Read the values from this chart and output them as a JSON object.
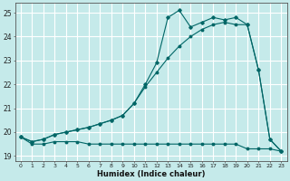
{
  "xlabel": "Humidex (Indice chaleur)",
  "bg_color": "#c5eaea",
  "line_color": "#006666",
  "grid_color": "#ffffff",
  "xlim": [
    -0.5,
    23.5
  ],
  "ylim": [
    18.8,
    25.4
  ],
  "yticks": [
    19,
    20,
    21,
    22,
    23,
    24,
    25
  ],
  "xticks": [
    0,
    1,
    2,
    3,
    4,
    5,
    6,
    7,
    8,
    9,
    10,
    11,
    12,
    13,
    14,
    15,
    16,
    17,
    18,
    19,
    20,
    21,
    22,
    23
  ],
  "line_flat_x": [
    0,
    1,
    2,
    3,
    4,
    5,
    6,
    7,
    8,
    9,
    10,
    11,
    12,
    13,
    14,
    15,
    16,
    17,
    18,
    19,
    20,
    21,
    22,
    23
  ],
  "line_flat_y": [
    19.8,
    19.5,
    19.5,
    19.6,
    19.6,
    19.6,
    19.5,
    19.5,
    19.5,
    19.5,
    19.5,
    19.5,
    19.5,
    19.5,
    19.5,
    19.5,
    19.5,
    19.5,
    19.5,
    19.5,
    19.3,
    19.3,
    19.3,
    19.2
  ],
  "line_diag_x": [
    0,
    1,
    2,
    3,
    4,
    5,
    6,
    7,
    8,
    9,
    10,
    11,
    12,
    13,
    14,
    15,
    16,
    17,
    18,
    19,
    20,
    21,
    22,
    23
  ],
  "line_diag_y": [
    19.8,
    19.6,
    19.7,
    19.9,
    20.0,
    20.1,
    20.2,
    20.35,
    20.5,
    20.7,
    21.2,
    21.9,
    22.5,
    23.1,
    23.6,
    24.0,
    24.3,
    24.5,
    24.6,
    24.5,
    24.5,
    22.6,
    19.7,
    19.2
  ],
  "line_zigzag_x": [
    0,
    1,
    2,
    3,
    4,
    5,
    6,
    7,
    8,
    9,
    10,
    11,
    12,
    13,
    14,
    15,
    16,
    17,
    18,
    19,
    20,
    21,
    22,
    23
  ],
  "line_zigzag_y": [
    19.8,
    19.6,
    19.7,
    19.9,
    20.0,
    20.1,
    20.2,
    20.35,
    20.5,
    20.7,
    21.2,
    22.0,
    22.9,
    24.8,
    25.1,
    24.4,
    24.6,
    24.8,
    24.7,
    24.8,
    24.5,
    22.6,
    19.7,
    19.2
  ]
}
